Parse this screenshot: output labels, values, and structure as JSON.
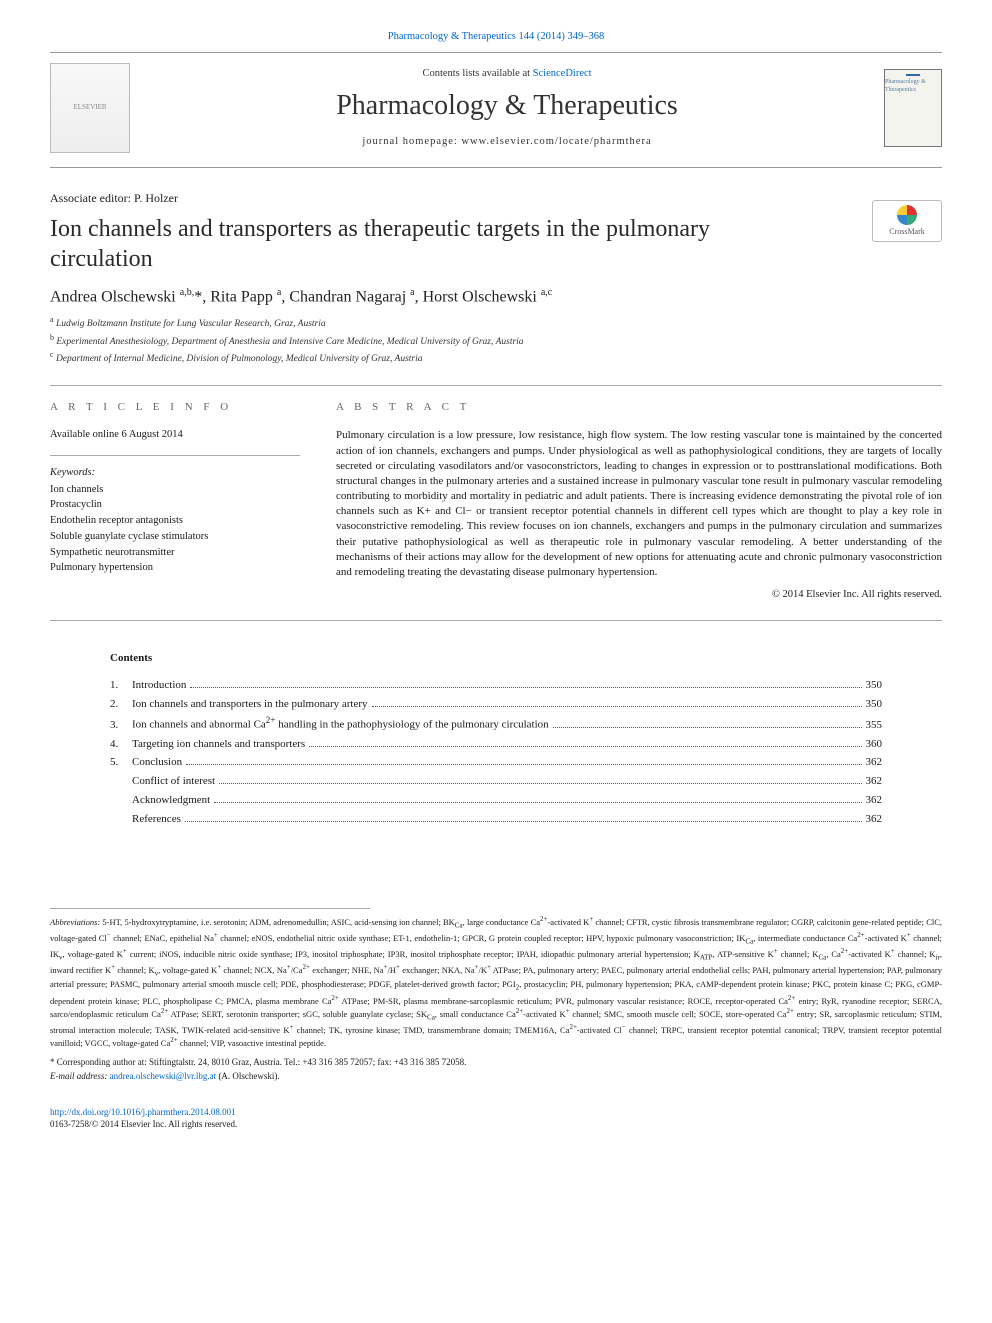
{
  "top_link": "Pharmacology & Therapeutics 144 (2014) 349–368",
  "header": {
    "contents_avail_prefix": "Contents lists available at ",
    "contents_avail_link": "ScienceDirect",
    "journal_name": "Pharmacology & Therapeutics",
    "homepage": "journal homepage: www.elsevier.com/locate/pharmthera",
    "elsevier_label": "ELSEVIER",
    "thumb_label": "Pharmacology & Therapeutics"
  },
  "crossmark": "CrossMark",
  "assoc_editor": "Associate editor: P. Holzer",
  "title": "Ion channels and transporters as therapeutic targets in the pulmonary circulation",
  "authors_html": "Andrea Olschewski <sup>a,b,</sup>*, Rita Papp <sup>a</sup>, Chandran Nagaraj <sup>a</sup>, Horst Olschewski <sup>a,c</sup>",
  "affiliations": [
    {
      "sup": "a",
      "text": "Ludwig Boltzmann Institute for Lung Vascular Research, Graz, Austria"
    },
    {
      "sup": "b",
      "text": "Experimental Anesthesiology, Department of Anesthesia and Intensive Care Medicine, Medical University of Graz, Austria"
    },
    {
      "sup": "c",
      "text": "Department of Internal Medicine, Division of Pulmonology, Medical University of Graz, Austria"
    }
  ],
  "article_info_label": "A R T I C L E   I N F O",
  "available_online": "Available online 6 August 2014",
  "keywords_label": "Keywords:",
  "keywords": [
    "Ion channels",
    "Prostacyclin",
    "Endothelin receptor antagonists",
    "Soluble guanylate cyclase stimulators",
    "Sympathetic neurotransmitter",
    "Pulmonary hypertension"
  ],
  "abstract_label": "A B S T R A C T",
  "abstract": "Pulmonary circulation is a low pressure, low resistance, high flow system. The low resting vascular tone is maintained by the concerted action of ion channels, exchangers and pumps. Under physiological as well as pathophysiological conditions, they are targets of locally secreted or circulating vasodilators and/or vasoconstrictors, leading to changes in expression or to posttranslational modifications. Both structural changes in the pulmonary arteries and a sustained increase in pulmonary vascular tone result in pulmonary vascular remodeling contributing to morbidity and mortality in pediatric and adult patients. There is increasing evidence demonstrating the pivotal role of ion channels such as K+ and Cl− or transient receptor potential channels in different cell types which are thought to play a key role in vasoconstrictive remodeling. This review focuses on ion channels, exchangers and pumps in the pulmonary circulation and summarizes their putative pathophysiological as well as therapeutic role in pulmonary vascular remodeling. A better understanding of the mechanisms of their actions may allow for the development of new options for attenuating acute and chronic pulmonary vasoconstriction and remodeling treating the devastating disease pulmonary hypertension.",
  "copyright": "© 2014 Elsevier Inc. All rights reserved.",
  "contents_label": "Contents",
  "toc": [
    {
      "num": "1.",
      "title": "Introduction",
      "page": "350"
    },
    {
      "num": "2.",
      "title": "Ion channels and transporters in the pulmonary artery",
      "page": "350"
    },
    {
      "num": "3.",
      "title": "Ion channels and abnormal Ca2+ handling in the pathophysiology of the pulmonary circulation",
      "page": "355"
    },
    {
      "num": "4.",
      "title": "Targeting ion channels and transporters",
      "page": "360"
    },
    {
      "num": "5.",
      "title": "Conclusion",
      "page": "362"
    },
    {
      "num": "",
      "title": "Conflict of interest",
      "page": "362"
    },
    {
      "num": "",
      "title": "Acknowledgment",
      "page": "362"
    },
    {
      "num": "",
      "title": "References",
      "page": "362"
    }
  ],
  "abbrev_label": "Abbreviations:",
  "abbrev_body": "5-HT, 5-hydroxytryptamine, i.e. serotonin; ADM, adrenomedullin; ASIC, acid-sensing ion channel; BKCa, large conductance Ca2+-activated K+ channel; CFTR, cystic fibrosis transmembrane regulator; CGRP, calcitonin gene-related peptide; ClC, voltage-gated Cl− channel; ENaC, epithelial Na+ channel; eNOS, endothelial nitric oxide synthase; ET-1, endothelin-1; GPCR, G protein coupled receptor; HPV, hypoxic pulmonary vasoconstriction; IKCa, intermediate conductance Ca2+-activated K+ channel; IKv, voltage-gated K+ current; iNOS, inducible nitric oxide synthase; IP3, inositol triphosphate; IP3R, inositol triphosphate receptor; IPAH, idiopathic pulmonary arterial hypertension; KATP, ATP-sensitive K+ channel; KCa, Ca2+-activated K+ channel; Kir, inward rectifier K+ channel; Kv, voltage-gated K+ channel; NCX, Na+/Ca2+ exchanger; NHE, Na+/H+ exchanger; NKA, Na+/K+ ATPase; PA, pulmonary artery; PAEC, pulmonary arterial endothelial cells; PAH, pulmonary arterial hypertension; PAP, pulmonary arterial pressure; PASMC, pulmonary arterial smooth muscle cell; PDE, phosphodiesterase; PDGF, platelet-derived growth factor; PGI2, prostacyclin; PH, pulmonary hypertension; PKA, cAMP-dependent protein kinase; PKC, protein kinase C; PKG, cGMP-dependent protein kinase; PLC, phospholipase C; PMCA, plasma membrane Ca2+ ATPase; PM-SR, plasma membrane-sarcoplasmic reticulum; PVR, pulmonary vascular resistance; ROCE, receptor-operated Ca2+ entry; RyR, ryanodine receptor; SERCA, sarco/endoplasmic reticulum Ca2+ ATPase; SERT, serotonin transporter; sGC, soluble guanylate cyclase; SKCa, small conductance Ca2+-activated K+ channel; SMC, smooth muscle cell; SOCE, store-operated Ca2+ entry; SR, sarcoplasmic reticulum; STIM, stromal interaction molecule; TASK, TWIK-related acid-sensitive K+ channel; TK, tyrosine kinase; TMD, transmembrane domain; TMEM16A, Ca2+-activated Cl− channel; TRPC, transient receptor potential canonical; TRPV, transient receptor potential vanilloid; VGCC, voltage-gated Ca2+ channel; VIP, vasoactive intestinal peptide.",
  "corresp": "* Corresponding author at: Stiftingtalstr. 24, 8010 Graz, Austria. Tel.: +43 316 385 72057; fax: +43 316 385 72058.",
  "email_label": "E-mail address: ",
  "email": "andrea.olschewski@lvr.lbg.at",
  "email_suffix": " (A. Olschewski).",
  "doi": "http://dx.doi.org/10.1016/j.pharmthera.2014.08.001",
  "issn_line": "0163-7258/© 2014 Elsevier Inc. All rights reserved.",
  "colors": {
    "link": "#0066cc",
    "text": "#1a1a1a",
    "rule": "#aaaaaa"
  }
}
